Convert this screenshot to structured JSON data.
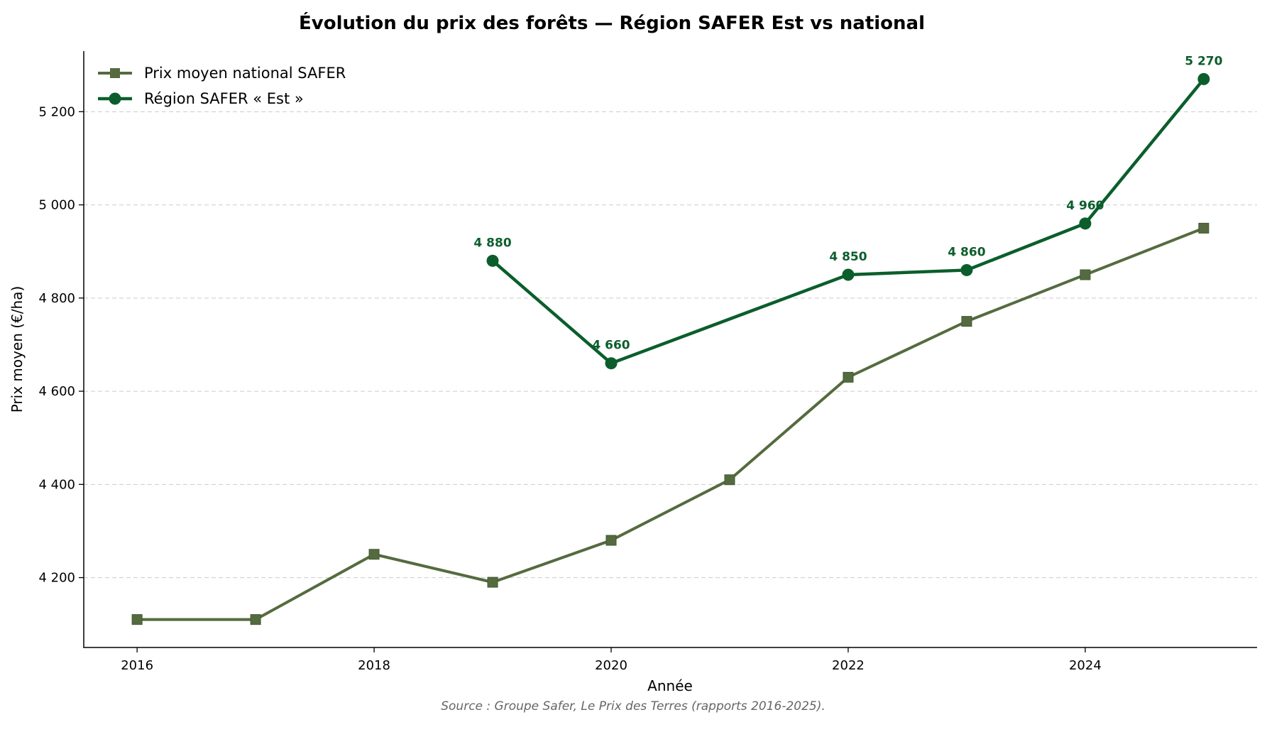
{
  "chart_data": {
    "type": "line",
    "title": "Évolution du prix des forêts — Région SAFER Est vs national",
    "xlabel": "Année",
    "ylabel": "Prix moyen (€/ha)",
    "x": [
      2016,
      2017,
      2018,
      2019,
      2020,
      2021,
      2022,
      2023,
      2024,
      2025
    ],
    "xlim": [
      2015.55,
      2025.45
    ],
    "ylim": [
      4050,
      5330
    ],
    "x_ticks": [
      2016,
      2018,
      2020,
      2022,
      2024
    ],
    "x_tick_labels": [
      "2016",
      "2018",
      "2020",
      "2022",
      "2024"
    ],
    "y_ticks": [
      4200,
      4400,
      4600,
      4800,
      5000,
      5200
    ],
    "y_tick_labels": [
      "4 200",
      "4 400",
      "4 600",
      "4 800",
      "5 000",
      "5 200"
    ],
    "grid": "horizontal dashed",
    "legend_position": "top-left",
    "series": [
      {
        "name": "Prix moyen national SAFER",
        "color": "#556b3f",
        "marker": "square",
        "values": [
          4110,
          4110,
          4250,
          4190,
          4280,
          4410,
          4630,
          4750,
          4850,
          4950
        ]
      },
      {
        "name": "Région SAFER « Est »",
        "color": "#0b5e2c",
        "marker": "circle",
        "values": [
          null,
          null,
          null,
          4880,
          4660,
          null,
          4850,
          4860,
          4960,
          5270
        ],
        "data_labels": [
          null,
          null,
          null,
          "4 880",
          "4 660",
          null,
          "4 850",
          "4 860",
          "4 960",
          "5 270"
        ]
      }
    ],
    "source": "Source : Groupe Safer, Le Prix des Terres (rapports 2016-2025)."
  }
}
